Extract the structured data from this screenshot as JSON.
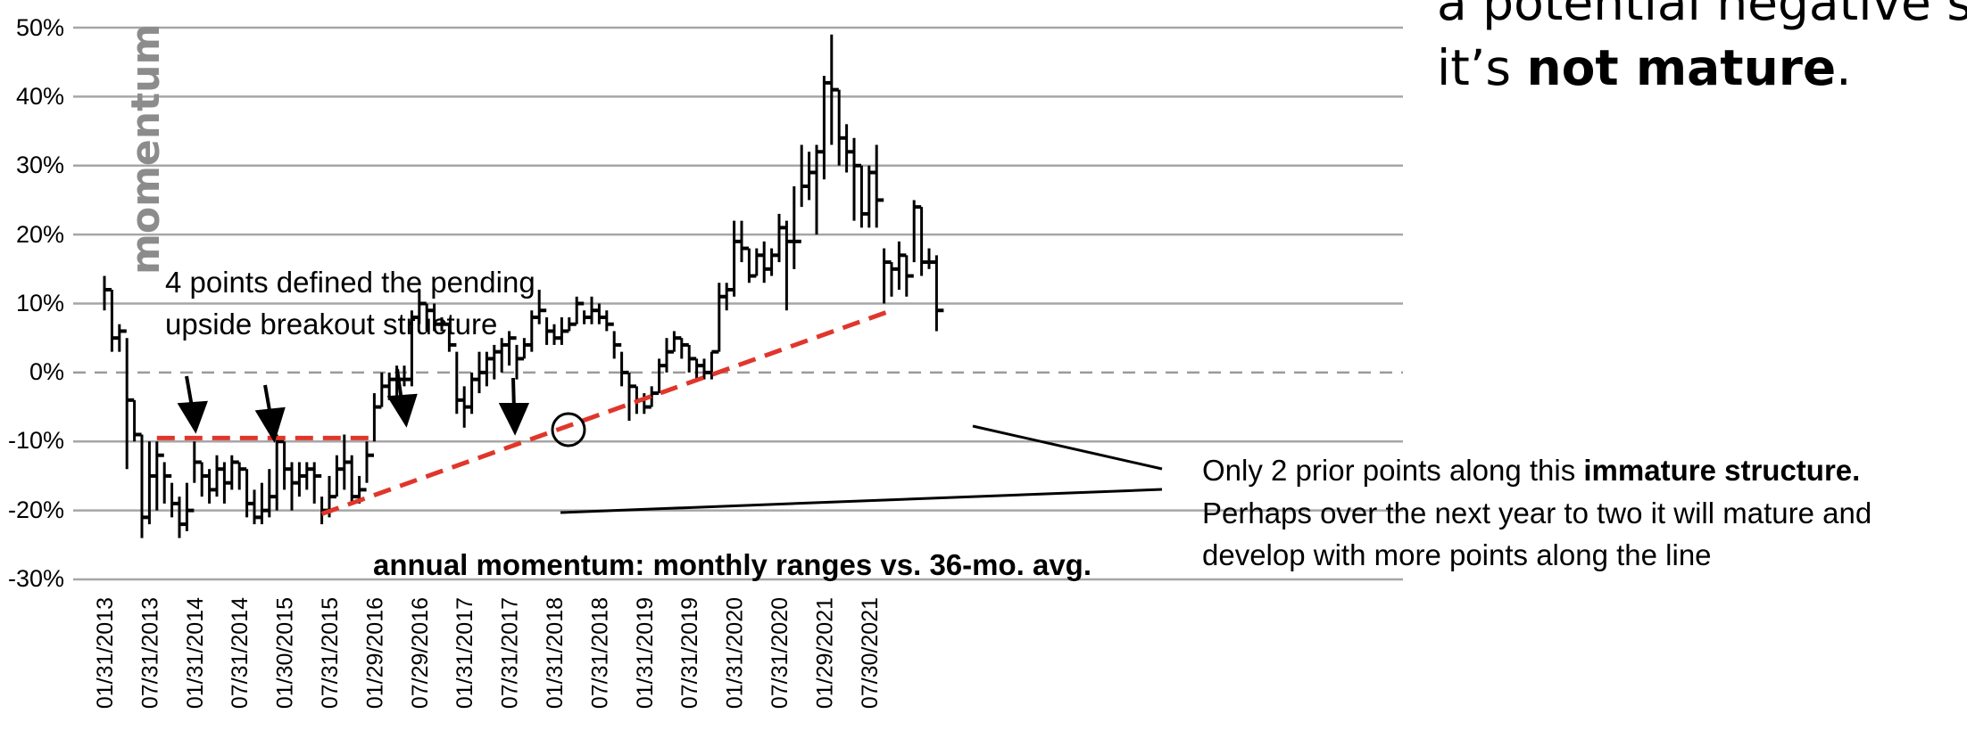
{
  "chart_data": {
    "type": "bar",
    "subtype": "monthly range bars (high-low with close tick)",
    "title": "",
    "subtitle": "annual momentum: monthly ranges vs. 36-mo. avg.",
    "ylabel": "momentum",
    "xlabel": "",
    "ylim": [
      -0.3,
      0.5
    ],
    "y_ticks": [
      "50%",
      "40%",
      "30%",
      "20%",
      "10%",
      "0%",
      "-10%",
      "-20%",
      "-30%"
    ],
    "x_tick_labels": [
      "01/31/2013",
      "07/31/2013",
      "01/31/2014",
      "07/31/2014",
      "01/30/2015",
      "07/31/2015",
      "01/29/2016",
      "07/29/2016",
      "01/31/2017",
      "07/31/2017",
      "01/31/2018",
      "07/31/2018",
      "01/31/2019",
      "07/31/2019",
      "01/31/2020",
      "07/31/2020",
      "01/29/2021",
      "07/30/2021"
    ],
    "grid": true,
    "zero_line": "dashed",
    "series": [
      {
        "bars": [
          [
            0.14,
            0.09,
            0.12
          ],
          [
            0.12,
            0.03,
            0.05
          ],
          [
            0.07,
            0.03,
            0.06
          ],
          [
            0.05,
            -0.14,
            -0.04
          ],
          [
            -0.04,
            -0.1,
            -0.09
          ],
          [
            -0.09,
            -0.24,
            -0.21
          ],
          [
            -0.1,
            -0.22,
            -0.15
          ],
          [
            -0.1,
            -0.2,
            -0.12
          ],
          [
            -0.13,
            -0.19,
            -0.15
          ],
          [
            -0.16,
            -0.21,
            -0.19
          ],
          [
            -0.18,
            -0.24,
            -0.22
          ],
          [
            -0.16,
            -0.23,
            -0.2
          ],
          [
            -0.1,
            -0.16,
            -0.13
          ],
          [
            -0.13,
            -0.18,
            -0.15
          ],
          [
            -0.14,
            -0.19,
            -0.17
          ],
          [
            -0.12,
            -0.18,
            -0.14
          ],
          [
            -0.13,
            -0.19,
            -0.16
          ],
          [
            -0.12,
            -0.17,
            -0.13
          ],
          [
            -0.13,
            -0.17,
            -0.14
          ],
          [
            -0.14,
            -0.21,
            -0.19
          ],
          [
            -0.17,
            -0.22,
            -0.21
          ],
          [
            -0.16,
            -0.22,
            -0.2
          ],
          [
            -0.14,
            -0.21,
            -0.18
          ],
          [
            -0.09,
            -0.2,
            -0.1
          ],
          [
            -0.1,
            -0.17,
            -0.14
          ],
          [
            -0.13,
            -0.2,
            -0.16
          ],
          [
            -0.13,
            -0.18,
            -0.15
          ],
          [
            -0.13,
            -0.17,
            -0.14
          ],
          [
            -0.13,
            -0.19,
            -0.15
          ],
          [
            -0.18,
            -0.22,
            -0.2
          ],
          [
            -0.15,
            -0.21,
            -0.18
          ],
          [
            -0.12,
            -0.18,
            -0.14
          ],
          [
            -0.09,
            -0.17,
            -0.13
          ],
          [
            -0.12,
            -0.19,
            -0.18
          ],
          [
            -0.15,
            -0.19,
            -0.17
          ],
          [
            -0.1,
            -0.16,
            -0.12
          ],
          [
            -0.03,
            -0.1,
            -0.05
          ],
          [
            0.0,
            -0.05,
            -0.02
          ],
          [
            0.0,
            -0.04,
            -0.01
          ],
          [
            0.01,
            -0.04,
            -0.01
          ],
          [
            0.01,
            -0.02,
            -0.01
          ],
          [
            0.09,
            -0.02,
            0.08
          ],
          [
            0.12,
            0.07,
            0.1
          ],
          [
            0.1,
            0.06,
            0.09
          ],
          [
            0.1,
            0.06,
            0.07
          ],
          [
            0.08,
            0.06,
            0.07
          ],
          [
            0.07,
            0.03,
            0.04
          ],
          [
            0.03,
            -0.06,
            -0.04
          ],
          [
            -0.02,
            -0.08,
            -0.05
          ],
          [
            0.0,
            -0.06,
            -0.01
          ],
          [
            0.03,
            -0.03,
            0.0
          ],
          [
            0.03,
            -0.02,
            0.02
          ],
          [
            0.04,
            -0.01,
            0.03
          ],
          [
            0.05,
            0.0,
            0.04
          ],
          [
            0.06,
            0.01,
            0.05
          ],
          [
            0.04,
            -0.01,
            0.02
          ],
          [
            0.05,
            0.02,
            0.04
          ],
          [
            0.09,
            0.03,
            0.08
          ],
          [
            0.12,
            0.07,
            0.09
          ],
          [
            0.08,
            0.04,
            0.06
          ],
          [
            0.07,
            0.04,
            0.05
          ],
          [
            0.08,
            0.04,
            0.06
          ],
          [
            0.08,
            0.06,
            0.07
          ],
          [
            0.11,
            0.07,
            0.1
          ],
          [
            0.09,
            0.07,
            0.08
          ],
          [
            0.11,
            0.07,
            0.09
          ],
          [
            0.1,
            0.07,
            0.08
          ],
          [
            0.09,
            0.06,
            0.07
          ],
          [
            0.06,
            0.02,
            0.04
          ],
          [
            0.03,
            -0.02,
            0.0
          ],
          [
            0.0,
            -0.07,
            -0.02
          ],
          [
            -0.02,
            -0.06,
            -0.04
          ],
          [
            -0.03,
            -0.06,
            -0.05
          ],
          [
            -0.02,
            -0.05,
            -0.03
          ],
          [
            0.02,
            -0.03,
            0.01
          ],
          [
            0.05,
            0.0,
            0.03
          ],
          [
            0.06,
            0.03,
            0.05
          ],
          [
            0.05,
            0.02,
            0.04
          ],
          [
            0.04,
            0.0,
            0.02
          ],
          [
            0.02,
            -0.01,
            0.01
          ],
          [
            0.02,
            -0.01,
            0.0
          ],
          [
            0.03,
            -0.01,
            0.03
          ],
          [
            0.13,
            0.03,
            0.11
          ],
          [
            0.13,
            0.09,
            0.12
          ],
          [
            0.22,
            0.11,
            0.19
          ],
          [
            0.22,
            0.16,
            0.18
          ],
          [
            0.18,
            0.13,
            0.14
          ],
          [
            0.18,
            0.14,
            0.17
          ],
          [
            0.19,
            0.13,
            0.15
          ],
          [
            0.18,
            0.14,
            0.17
          ],
          [
            0.23,
            0.16,
            0.21
          ],
          [
            0.22,
            0.09,
            0.19
          ],
          [
            0.27,
            0.15,
            0.19
          ],
          [
            0.33,
            0.24,
            0.27
          ],
          [
            0.32,
            0.25,
            0.29
          ],
          [
            0.33,
            0.2,
            0.32
          ],
          [
            0.43,
            0.28,
            0.42
          ],
          [
            0.49,
            0.33,
            0.41
          ],
          [
            0.41,
            0.3,
            0.34
          ],
          [
            0.36,
            0.29,
            0.32
          ],
          [
            0.34,
            0.22,
            0.3
          ],
          [
            0.3,
            0.21,
            0.23
          ],
          [
            0.3,
            0.21,
            0.29
          ],
          [
            0.33,
            0.21,
            0.25
          ],
          [
            0.18,
            0.1,
            0.16
          ],
          [
            0.16,
            0.11,
            0.15
          ],
          [
            0.19,
            0.12,
            0.17
          ],
          [
            0.17,
            0.11,
            0.14
          ],
          [
            0.25,
            0.16,
            0.24
          ],
          [
            0.24,
            0.14,
            0.16
          ],
          [
            0.18,
            0.15,
            0.16
          ],
          [
            0.17,
            0.06,
            0.09
          ]
        ]
      }
    ],
    "trendlines": [
      {
        "style": "red-dashed",
        "x": [
          7,
          36
        ],
        "y": [
          -0.095,
          -0.095
        ]
      },
      {
        "style": "red-dashed",
        "x": [
          29,
          104.5
        ],
        "y": [
          -0.205,
          0.088
        ]
      }
    ],
    "annotations": {
      "breakout_note_line1": "4 points defined the pending",
      "breakout_note_line2": "upside breakout structure",
      "immature_note_line1_pre": "Only 2 prior points along this ",
      "immature_note_line1_bold": "immature structure.",
      "immature_note_line2": "Perhaps over the next year to two it will mature and",
      "immature_note_line3": "develop with more points along the line",
      "callout_line1": "a potential negative su",
      "callout_line2_pre": "it’s ",
      "callout_line2_bold": "not mature",
      "callout_line2_post": "."
    }
  }
}
